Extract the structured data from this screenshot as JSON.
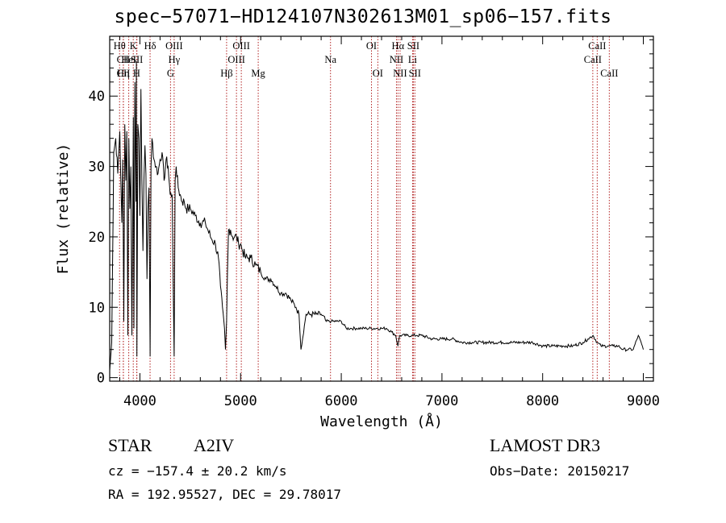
{
  "chart_data": {
    "type": "line",
    "title": "spec−57071−HD124107N302613M01_sp06−157.fits",
    "xlabel": "Wavelength (Å)",
    "ylabel": "Flux (relative)",
    "xlim": [
      3700,
      9100
    ],
    "ylim": [
      -0.5,
      48.5
    ],
    "x_ticks": [
      4000,
      5000,
      6000,
      7000,
      8000,
      9000
    ],
    "y_ticks": [
      0,
      10,
      20,
      30,
      40
    ],
    "series": [
      {
        "name": "flux",
        "x": [
          3700,
          3720,
          3740,
          3760,
          3780,
          3800,
          3820,
          3830,
          3840,
          3850,
          3860,
          3870,
          3880,
          3890,
          3900,
          3910,
          3920,
          3930,
          3935,
          3940,
          3950,
          3960,
          3965,
          3970,
          3980,
          3990,
          4000,
          4010,
          4020,
          4030,
          4040,
          4050,
          4060,
          4070,
          4080,
          4090,
          4101,
          4110,
          4120,
          4140,
          4160,
          4180,
          4200,
          4220,
          4240,
          4260,
          4280,
          4300,
          4320,
          4330,
          4340,
          4350,
          4360,
          4380,
          4400,
          4420,
          4440,
          4460,
          4480,
          4500,
          4550,
          4600,
          4650,
          4700,
          4750,
          4780,
          4800,
          4820,
          4840,
          4850,
          4861,
          4870,
          4880,
          4900,
          4920,
          4940,
          4960,
          4980,
          5000,
          5020,
          5050,
          5080,
          5100,
          5150,
          5200,
          5250,
          5300,
          5350,
          5400,
          5450,
          5500,
          5550,
          5580,
          5600,
          5650,
          5700,
          5750,
          5800,
          5850,
          5900,
          5950,
          6000,
          6050,
          6100,
          6150,
          6200,
          6250,
          6300,
          6350,
          6400,
          6450,
          6500,
          6540,
          6563,
          6580,
          6600,
          6650,
          6700,
          6750,
          6800,
          6900,
          7000,
          7100,
          7200,
          7300,
          7400,
          7500,
          7600,
          7700,
          7800,
          7900,
          8000,
          8100,
          8200,
          8300,
          8400,
          8450,
          8500,
          8542,
          8580,
          8600,
          8650,
          8700,
          8750,
          8800,
          8850,
          8900,
          8950,
          9000
        ],
        "values": [
          1,
          5,
          32,
          34,
          29,
          35,
          22,
          31,
          8,
          36,
          28,
          35,
          6,
          34,
          24,
          30,
          6,
          26,
          37,
          7,
          42,
          25,
          45,
          3,
          36,
          34,
          23,
          41,
          28,
          18,
          28,
          33,
          29,
          14,
          24,
          27,
          3,
          30,
          34,
          31,
          30,
          29,
          31,
          32,
          28,
          31,
          30,
          26,
          26,
          14,
          3,
          28,
          30,
          27,
          26,
          25,
          25,
          24,
          24,
          24,
          23,
          22,
          22,
          20,
          19,
          17,
          13,
          10,
          7,
          4,
          8,
          15,
          21,
          21,
          20,
          20,
          20,
          19,
          19,
          18,
          17,
          17,
          17,
          16,
          15,
          14,
          14,
          13,
          12,
          12,
          11,
          10,
          9,
          4,
          9,
          9,
          9,
          9,
          8,
          8,
          8,
          8,
          7,
          7,
          7,
          7,
          7,
          7,
          7,
          7,
          7,
          6.5,
          6,
          4.5,
          6,
          6,
          6,
          6,
          6,
          6,
          5.5,
          5.5,
          5.5,
          5,
          5,
          5,
          5,
          5,
          5,
          5,
          5,
          4.5,
          4.5,
          4.5,
          4.5,
          5,
          5.5,
          6,
          5,
          4.5,
          4.5,
          4.5,
          4.5,
          4.5,
          4,
          4,
          4,
          6,
          4
        ]
      }
    ],
    "spectral_lines": [
      {
        "name": "Hθ",
        "wavelength": 3798,
        "label_row": 0
      },
      {
        "name": "CII",
        "wavelength": 3836,
        "label_row": 1
      },
      {
        "name": "CII",
        "wavelength": 3836,
        "label_row": 2
      },
      {
        "name": "Hη",
        "wavelength": 3835,
        "label_row": 2
      },
      {
        "name": "HeI",
        "wavelength": 3889,
        "label_row": 1
      },
      {
        "name": "K",
        "wavelength": 3934,
        "label_row": 0
      },
      {
        "name": "SII",
        "wavelength": 3970,
        "label_row": 1
      },
      {
        "name": "H",
        "wavelength": 3968,
        "label_row": 2
      },
      {
        "name": "Hδ",
        "wavelength": 4101,
        "label_row": 0
      },
      {
        "name": "OIII",
        "wavelength": 4340,
        "label_row": 0
      },
      {
        "name": "Hγ",
        "wavelength": 4340,
        "label_row": 1
      },
      {
        "name": "G",
        "wavelength": 4304,
        "label_row": 2
      },
      {
        "name": "Hβ",
        "wavelength": 4861,
        "label_row": 2
      },
      {
        "name": "OIII",
        "wavelength": 5007,
        "label_row": 0
      },
      {
        "name": "OIII",
        "wavelength": 4959,
        "label_row": 1
      },
      {
        "name": "Mg",
        "wavelength": 5175,
        "label_row": 2
      },
      {
        "name": "Na",
        "wavelength": 5893,
        "label_row": 1
      },
      {
        "name": "OI",
        "wavelength": 6300,
        "label_row": 0
      },
      {
        "name": "OI",
        "wavelength": 6363,
        "label_row": 2
      },
      {
        "name": "Hα",
        "wavelength": 6563,
        "label_row": 0
      },
      {
        "name": "SII",
        "wavelength": 6716,
        "label_row": 0
      },
      {
        "name": "NII",
        "wavelength": 6548,
        "label_row": 1
      },
      {
        "name": "Li",
        "wavelength": 6708,
        "label_row": 1
      },
      {
        "name": "NII",
        "wavelength": 6584,
        "label_row": 2
      },
      {
        "name": "SII",
        "wavelength": 6731,
        "label_row": 2
      },
      {
        "name": "CaII",
        "wavelength": 8542,
        "label_row": 0
      },
      {
        "name": "CaII",
        "wavelength": 8498,
        "label_row": 1
      },
      {
        "name": "CaII",
        "wavelength": 8662,
        "label_row": 2
      }
    ],
    "colors": {
      "spectrum": "#000000",
      "lines": "#b22222"
    }
  },
  "info": {
    "object_type": "STAR",
    "subclass": "A2IV",
    "survey": "LAMOST DR3",
    "cz": "cz = −157.4 ± 20.2 km/s",
    "obs_date": "Obs−Date: 20150217",
    "coords": "RA = 192.95527, DEC =  29.78017"
  }
}
